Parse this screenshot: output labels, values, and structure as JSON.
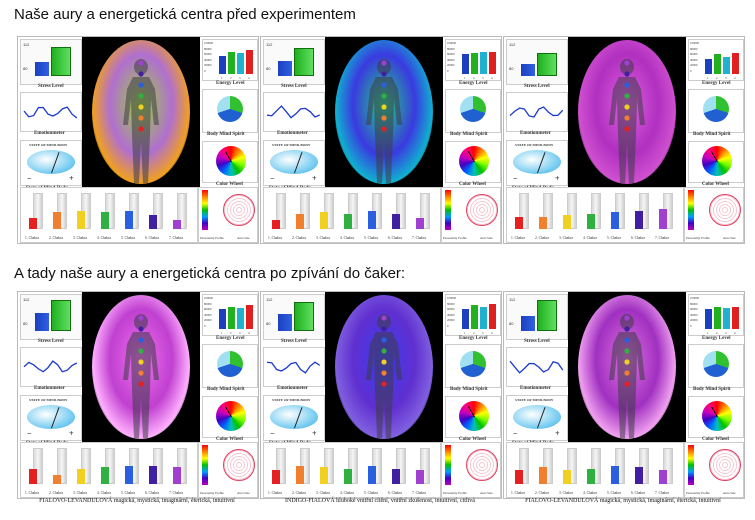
{
  "headings": {
    "before": "Naše aury a energetická centra před experimentem",
    "after": "A tady naše aury a energetická centra po zpívání do čaker:"
  },
  "labels": {
    "stress_level": "Stress Level",
    "emotionmeter": "Emotionmeter",
    "state_of_mind_body": "State of Mind-Body",
    "state_header": "STATE OF MIND-BODY",
    "minus": "−",
    "plus": "+",
    "energy_level": "Energy Level",
    "body_mind_spirit": "Body Mind Spirit",
    "color_wheel": "Color Wheel",
    "chakras": [
      "1. Chakra",
      "2. Chakra",
      "3. Chakra",
      "4. Chakra",
      "5. Chakra",
      "6. Chakra",
      "7. Chakra"
    ],
    "personality_profile": "Personality Profile",
    "aura_size": "Aura Size",
    "stress_axis_top": "112",
    "stress_axis_bottom": "80",
    "energy_axis": [
      "100000",
      "80000",
      "60000",
      "40000",
      "20000",
      "0"
    ],
    "energy_x": [
      "1",
      "2",
      "3",
      "4"
    ]
  },
  "chakra_colors": [
    "#e52020",
    "#f08030",
    "#f0d020",
    "#30b040",
    "#2a60e0",
    "#4020a0",
    "#a040d0"
  ],
  "panels": [
    {
      "id": "p1",
      "aura": [
        "#b06fd0",
        "#9ad23a",
        "#f0a020"
      ],
      "stress": [
        0.45,
        0.9
      ],
      "chakra": [
        0.35,
        0.55,
        0.6,
        0.55,
        0.6,
        0.45,
        0.3
      ],
      "energy": [
        0.65,
        0.8,
        0.75,
        0.85
      ],
      "caption": ""
    },
    {
      "id": "p2",
      "aura": [
        "#3a3ae0",
        "#20d080",
        "#10b0d0"
      ],
      "stress": [
        0.5,
        0.85
      ],
      "chakra": [
        0.3,
        0.5,
        0.55,
        0.5,
        0.6,
        0.5,
        0.35
      ],
      "energy": [
        0.7,
        0.75,
        0.8,
        0.8
      ],
      "caption": ""
    },
    {
      "id": "p3",
      "aura": [
        "#b030c0",
        "#e060e0",
        "#d050d0"
      ],
      "stress": [
        0.4,
        0.7
      ],
      "chakra": [
        0.4,
        0.4,
        0.45,
        0.5,
        0.55,
        0.6,
        0.65
      ],
      "energy": [
        0.55,
        0.7,
        0.6,
        0.75
      ],
      "caption": ""
    },
    {
      "id": "p4",
      "aura": [
        "#c040d0",
        "#f070f0",
        "#ffb0ff"
      ],
      "stress": [
        0.6,
        0.95
      ],
      "chakra": [
        0.5,
        0.3,
        0.5,
        0.55,
        0.6,
        0.6,
        0.55
      ],
      "energy": [
        0.7,
        0.8,
        0.75,
        0.85
      ],
      "caption": "FIALOVO-LEVANDULOVÁ magická, mystická, imaginární, éterická, intuitivní"
    },
    {
      "id": "p5",
      "aura": [
        "#6030d0",
        "#3a3af0",
        "#8060e0"
      ],
      "stress": [
        0.55,
        0.9
      ],
      "chakra": [
        0.45,
        0.6,
        0.55,
        0.5,
        0.6,
        0.5,
        0.45
      ],
      "energy": [
        0.7,
        0.85,
        0.8,
        0.9
      ],
      "caption": "INDIGO-FIALOVÁ hluboké vnitřní cítění, vnitřní zkušenost, intuitivní, citlivá"
    },
    {
      "id": "p6",
      "aura": [
        "#a030c0",
        "#e070e0",
        "#f0a0f0"
      ],
      "stress": [
        0.5,
        0.95
      ],
      "chakra": [
        0.45,
        0.55,
        0.45,
        0.5,
        0.6,
        0.55,
        0.45
      ],
      "energy": [
        0.7,
        0.8,
        0.75,
        0.8
      ],
      "caption": "FIALOVO-LEVANDULOVÁ magická, mystická, imaginární, éterická, intuitivní"
    }
  ]
}
